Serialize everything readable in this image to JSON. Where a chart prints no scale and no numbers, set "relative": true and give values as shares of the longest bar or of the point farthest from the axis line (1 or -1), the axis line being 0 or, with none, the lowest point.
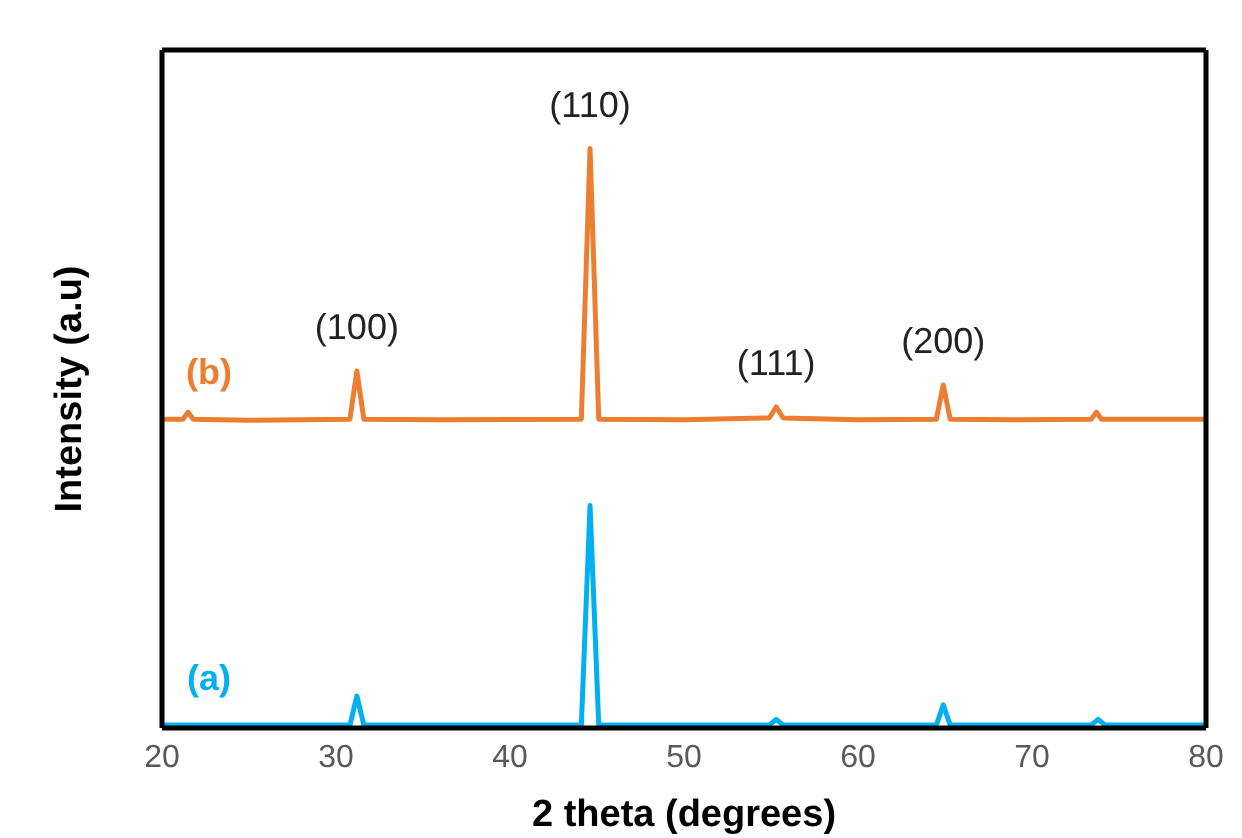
{
  "chart_data": {
    "type": "line",
    "relative": true,
    "xlabel": "2 theta (degrees)",
    "ylabel": "Intensity (a.u)",
    "xlim": [
      20,
      80
    ],
    "xticks": [
      20,
      30,
      40,
      50,
      60,
      70,
      80
    ],
    "legend": false,
    "marker": "none",
    "series": [
      {
        "name": "(b)",
        "color": "#ed7d31",
        "x": [
          20,
          21.2,
          21.5,
          21.8,
          25,
          30.8,
          31.2,
          31.6,
          36,
          44.1,
          44.6,
          45.1,
          50,
          54.9,
          55.3,
          55.7,
          60,
          64.5,
          64.9,
          65.3,
          69,
          73.4,
          73.7,
          74,
          80
        ],
        "values": [
          0.533,
          0.533,
          0.545,
          0.533,
          0.531,
          0.533,
          0.616,
          0.533,
          0.532,
          0.533,
          1,
          0.533,
          0.532,
          0.535,
          0.554,
          0.535,
          0.532,
          0.533,
          0.592,
          0.533,
          0.532,
          0.533,
          0.545,
          0.533,
          0.533
        ]
      },
      {
        "name": "(a)",
        "color": "#00b0f0",
        "x": [
          20,
          25,
          30.8,
          31.2,
          31.6,
          38,
          44.1,
          44.6,
          45.1,
          50,
          54.9,
          55.3,
          55.7,
          60,
          64.5,
          64.9,
          65.3,
          69,
          73.4,
          73.8,
          74.2,
          80
        ],
        "values": [
          0.005,
          0.005,
          0.005,
          0.055,
          0.005,
          0.005,
          0.005,
          0.384,
          0.005,
          0.005,
          0.005,
          0.015,
          0.005,
          0.005,
          0.005,
          0.04,
          0.005,
          0.005,
          0.005,
          0.015,
          0.005,
          0.005
        ]
      }
    ],
    "annotations": [
      {
        "text": "(100)",
        "x": 31.2,
        "y": 0.616
      },
      {
        "text": "(110)",
        "x": 44.6,
        "y": 1
      },
      {
        "text": "(111)",
        "x": 55.3,
        "y": 0.554
      },
      {
        "text": "(200)",
        "x": 64.9,
        "y": 0.592
      }
    ]
  }
}
